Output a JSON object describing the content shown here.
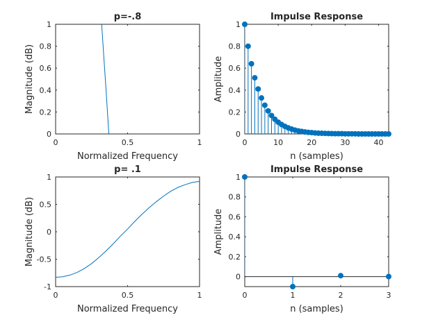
{
  "chart_data": [
    {
      "type": "line",
      "title": "p=-.8",
      "xlabel": "Normalized Frequency",
      "ylabel": "Magnitude (dB)",
      "xlim": [
        0,
        1
      ],
      "ylim": [
        0,
        1
      ],
      "xticks": [
        0,
        0.5,
        1
      ],
      "xtick_labels": [
        "0",
        "0.5",
        "1"
      ],
      "yticks": [
        0,
        0.2,
        0.4,
        0.6,
        0.8,
        1
      ],
      "ytick_labels": [
        "0",
        "0.2",
        "0.4",
        "0.6",
        "0.8",
        "1"
      ],
      "series": [
        {
          "x": [
            0.32,
            0.33,
            0.34,
            0.35,
            0.36,
            0.37
          ],
          "y": [
            1.0,
            0.8,
            0.6,
            0.41,
            0.2,
            0.0
          ]
        }
      ],
      "color": "#0072bd",
      "grid": false
    },
    {
      "type": "stem",
      "title": "Impulse Response",
      "xlabel": "n (samples)",
      "ylabel": "Amplitude",
      "xlim": [
        0,
        43
      ],
      "ylim": [
        0,
        1
      ],
      "xticks": [
        0,
        10,
        20,
        30,
        40
      ],
      "xtick_labels": [
        "0",
        "10",
        "20",
        "30",
        "40"
      ],
      "yticks": [
        0,
        0.2,
        0.4,
        0.6,
        0.8,
        1
      ],
      "ytick_labels": [
        "0",
        "0.2",
        "0.4",
        "0.6",
        "0.8",
        "1"
      ],
      "series": [
        {
          "x": [
            0,
            1,
            2,
            3,
            4,
            5,
            6,
            7,
            8,
            9,
            10,
            11,
            12,
            13,
            14,
            15,
            16,
            17,
            18,
            19,
            20,
            21,
            22,
            23,
            24,
            25,
            26,
            27,
            28,
            29,
            30,
            31,
            32,
            33,
            34,
            35,
            36,
            37,
            38,
            39,
            40,
            41,
            42,
            43
          ],
          "y": [
            1.0,
            0.8,
            0.64,
            0.512,
            0.41,
            0.328,
            0.262,
            0.21,
            0.168,
            0.134,
            0.107,
            0.086,
            0.069,
            0.055,
            0.044,
            0.035,
            0.028,
            0.023,
            0.018,
            0.014,
            0.012,
            0.009,
            0.007,
            0.006,
            0.005,
            0.004,
            0.003,
            0.002,
            0.002,
            0.002,
            0.001,
            0.001,
            0.001,
            0.001,
            0.0,
            0.0,
            0.0,
            0.0,
            0.0,
            0.0,
            0.0,
            0.0,
            0.0,
            0.0
          ]
        }
      ],
      "color": "#0072bd",
      "grid": false
    },
    {
      "type": "line",
      "title": "p= .1",
      "xlabel": "Normalized Frequency",
      "ylabel": "Magnitude (dB)",
      "xlim": [
        0,
        1
      ],
      "ylim": [
        -1,
        1
      ],
      "xticks": [
        0,
        0.5,
        1
      ],
      "xtick_labels": [
        "0",
        "0.5",
        "1"
      ],
      "yticks": [
        -1,
        -0.5,
        0,
        0.5,
        1
      ],
      "ytick_labels": [
        "-1",
        "-0.5",
        "0",
        "0.5",
        "1"
      ],
      "series": [
        {
          "x": [
            0,
            0.05,
            0.1,
            0.15,
            0.2,
            0.25,
            0.3,
            0.35,
            0.4,
            0.45,
            0.5,
            0.55,
            0.6,
            0.65,
            0.7,
            0.75,
            0.8,
            0.85,
            0.9,
            0.95,
            1.0
          ],
          "y": [
            -0.83,
            -0.82,
            -0.79,
            -0.74,
            -0.67,
            -0.58,
            -0.47,
            -0.35,
            -0.22,
            -0.08,
            0.05,
            0.19,
            0.32,
            0.44,
            0.55,
            0.65,
            0.74,
            0.81,
            0.86,
            0.9,
            0.92
          ]
        }
      ],
      "color": "#0072bd",
      "grid": false
    },
    {
      "type": "stem",
      "title": "Impulse Response",
      "xlabel": "n (samples)",
      "ylabel": "Amplitude",
      "xlim": [
        0,
        3
      ],
      "ylim": [
        -0.1,
        1
      ],
      "xticks": [
        0,
        1,
        2,
        3
      ],
      "xtick_labels": [
        "0",
        "1",
        "2",
        "3"
      ],
      "yticks": [
        0,
        0.2,
        0.4,
        0.6,
        0.8,
        1
      ],
      "ytick_labels": [
        "0",
        "0.2",
        "0.4",
        "0.6",
        "0.8",
        "1"
      ],
      "baseline": true,
      "series": [
        {
          "x": [
            0,
            1,
            2,
            3
          ],
          "y": [
            1.0,
            -0.1,
            0.01,
            0.001
          ]
        }
      ],
      "color": "#0072bd",
      "grid": false
    }
  ]
}
